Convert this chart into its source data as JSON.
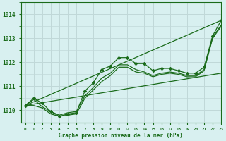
{
  "title": "Graphe pression niveau de la mer (hPa)",
  "bg_color": "#d8f0f0",
  "grid_color": "#c0d8d8",
  "line_color": "#1a6b1a",
  "xlim": [
    -0.5,
    23
  ],
  "ylim": [
    1009.5,
    1014.5
  ],
  "yticks": [
    1010,
    1011,
    1012,
    1013,
    1014
  ],
  "xtick_labels": [
    "0",
    "1",
    "2",
    "3",
    "4",
    "5",
    "6",
    "7",
    "8",
    "9",
    "10",
    "11",
    "12",
    "13",
    "14",
    "15",
    "16",
    "17",
    "18",
    "19",
    "20",
    "21",
    "22",
    "23"
  ],
  "series_with_markers": [
    [
      1010.2,
      1010.5,
      1010.3,
      1009.95,
      1009.75,
      1009.85,
      1009.9,
      1010.8,
      1011.15,
      1011.7,
      1011.85,
      1012.2,
      1012.2,
      1011.95,
      1011.95,
      1011.65,
      1011.75,
      1011.75,
      1011.65,
      1011.55,
      1011.55,
      1011.8,
      1013.1,
      1013.75
    ]
  ],
  "series_no_markers": [
    [
      1010.2,
      1010.45,
      1010.15,
      1009.95,
      1009.8,
      1009.9,
      1009.95,
      1010.6,
      1010.95,
      1011.35,
      1011.55,
      1011.9,
      1011.9,
      1011.7,
      1011.6,
      1011.45,
      1011.55,
      1011.6,
      1011.55,
      1011.45,
      1011.45,
      1011.7,
      1013.05,
      1013.55
    ],
    [
      1010.2,
      1010.2,
      1010.1,
      1009.85,
      1009.75,
      1009.8,
      1009.85,
      1010.5,
      1010.85,
      1011.2,
      1011.45,
      1011.8,
      1011.8,
      1011.6,
      1011.55,
      1011.4,
      1011.5,
      1011.55,
      1011.5,
      1011.4,
      1011.4,
      1011.65,
      1013.0,
      1013.5
    ]
  ],
  "straight_lines": [
    {
      "x": [
        0,
        23
      ],
      "y": [
        1010.2,
        1013.75
      ]
    },
    {
      "x": [
        0,
        23
      ],
      "y": [
        1010.2,
        1011.55
      ]
    }
  ]
}
